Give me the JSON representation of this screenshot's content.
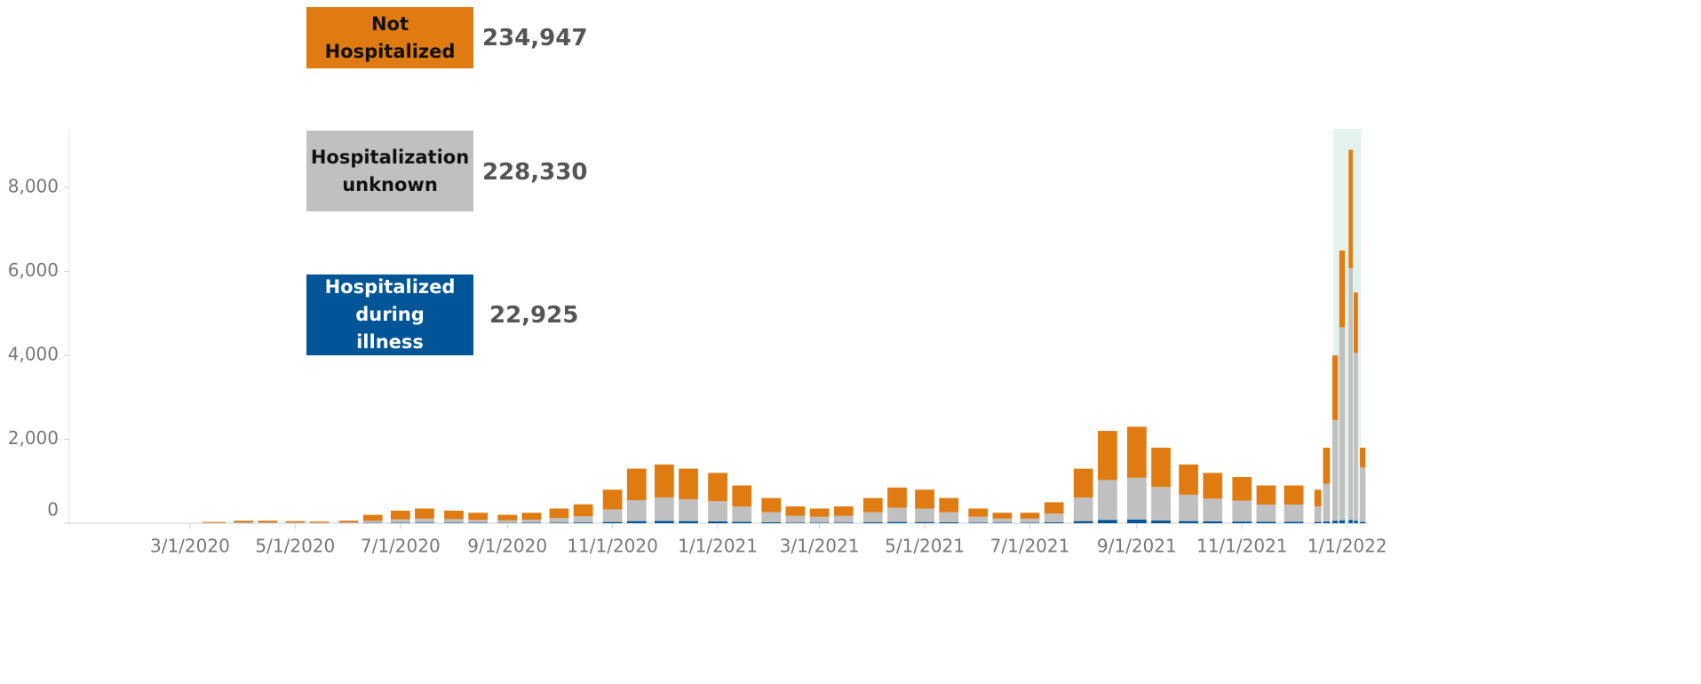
{
  "chart_data": {
    "type": "stacked_bar",
    "categories": [
      "3/15/2020",
      "4/1/2020",
      "4/15/2020",
      "5/1/2020",
      "5/15/2020",
      "6/1/2020",
      "6/15/2020",
      "7/1/2020",
      "7/15/2020",
      "8/1/2020",
      "8/15/2020",
      "9/1/2020",
      "9/15/2020",
      "10/1/2020",
      "10/15/2020",
      "11/1/2020",
      "11/15/2020",
      "12/1/2020",
      "12/15/2020",
      "1/1/2021",
      "1/15/2021",
      "2/1/2021",
      "2/15/2021",
      "3/1/2021",
      "3/15/2021",
      "4/1/2021",
      "4/15/2021",
      "5/1/2021",
      "5/15/2021",
      "6/1/2021",
      "6/15/2021",
      "7/1/2021",
      "7/15/2021",
      "8/1/2021",
      "8/15/2021",
      "9/1/2021",
      "9/15/2021",
      "10/1/2021",
      "10/15/2021",
      "11/1/2021",
      "11/15/2021",
      "12/1/2021",
      "12/15/2021",
      "12/20/2021",
      "12/25/2021",
      "12/29/2021",
      "1/3/2022",
      "1/6/2022",
      "1/10/2022"
    ],
    "series": [
      {
        "name": "Hospitalized during illness",
        "color": "#005596",
        "total": {
          "value": 22925,
          "label": "22,925"
        },
        "values": [
          2,
          5,
          5,
          4,
          3,
          4,
          8,
          12,
          15,
          12,
          10,
          8,
          10,
          14,
          18,
          30,
          50,
          55,
          50,
          45,
          35,
          25,
          15,
          14,
          15,
          22,
          30,
          28,
          22,
          14,
          10,
          10,
          20,
          50,
          80,
          85,
          65,
          50,
          45,
          40,
          35,
          35,
          30,
          40,
          60,
          70,
          80,
          60,
          30
        ]
      },
      {
        "name": "Hospitalization unknown",
        "color": "#c0c0c0",
        "total": {
          "value": 228330,
          "label": "228,330"
        },
        "values": [
          8,
          15,
          15,
          12,
          10,
          16,
          50,
          80,
          95,
          85,
          70,
          60,
          75,
          110,
          150,
          300,
          500,
          560,
          520,
          480,
          360,
          240,
          160,
          140,
          160,
          240,
          340,
          320,
          240,
          140,
          100,
          100,
          210,
          560,
          950,
          1000,
          800,
          630,
          540,
          500,
          410,
          410,
          370,
          900,
          2400,
          4600,
          6000,
          4000,
          1300
        ]
      },
      {
        "name": "Not Hospitalized",
        "color": "#e07b12",
        "total": {
          "value": 234947,
          "label": "234,947"
        },
        "values": [
          20,
          40,
          40,
          34,
          27,
          40,
          142,
          208,
          240,
          203,
          170,
          132,
          165,
          226,
          282,
          470,
          750,
          785,
          730,
          675,
          505,
          335,
          225,
          196,
          225,
          338,
          480,
          452,
          338,
          196,
          140,
          140,
          270,
          690,
          1170,
          1215,
          935,
          720,
          615,
          560,
          455,
          455,
          400,
          860,
          1540,
          1830,
          2820,
          1440,
          470
        ]
      }
    ],
    "xlim": [
      "12/22/2019",
      "1/13/2022"
    ],
    "xticks": [
      "3/1/2020",
      "5/1/2020",
      "7/1/2020",
      "9/1/2020",
      "11/1/2020",
      "1/1/2021",
      "3/1/2021",
      "5/1/2021",
      "7/1/2021",
      "9/1/2021",
      "11/1/2021",
      "1/1/2022"
    ],
    "ylim": [
      0,
      9400
    ],
    "yticks": [
      0,
      {
        "value": 2000,
        "label": "2,000"
      },
      {
        "value": 4000,
        "label": "4,000"
      },
      {
        "value": 6000,
        "label": "6,000"
      },
      {
        "value": 8000,
        "label": "8,000"
      }
    ],
    "highlight": {
      "from": "12/24/2021",
      "to": "1/9/2022",
      "color": "#e3f3ec"
    }
  }
}
